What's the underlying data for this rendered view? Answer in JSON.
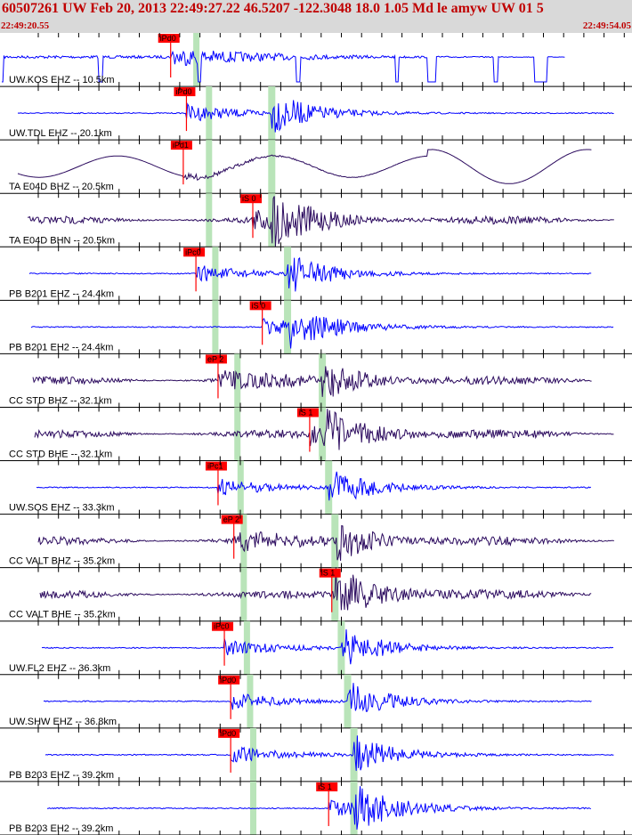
{
  "header": {
    "title": "60507261 UW Feb 20, 2013 22:49:27.22   46.5207 -122.3048 18.0 1.05 Md le amyw UW 01   5",
    "time_start": "22:49:20.55",
    "time_end": "22:49:54.05"
  },
  "colors": {
    "header_bg": "#d9d9d9",
    "header_text": "#c00000",
    "short_period": "#0000ff",
    "broadband": "#2b0a5e",
    "pick_box": "#ff0000",
    "green_band": "#b9e4b9",
    "residual": "#ff0000"
  },
  "traces": [
    {
      "label": "UW.KOS EHZ -- 10.5km",
      "pick": "iPd0",
      "type": "dropout",
      "color": "#0000ff",
      "green": 0.31,
      "pick_x": 0.27
    },
    {
      "label": "UW.TDL EHZ -- 20.1km",
      "pick": "iPd0",
      "type": "sp",
      "color": "#0000ff",
      "green": 0.33,
      "s_green": 0.43,
      "pick_x": 0.295
    },
    {
      "label": "TA E04D BHZ -- 20.5km",
      "pick": "iPd1",
      "type": "bb_lowfreq",
      "color": "#2b0a5e",
      "green": 0.33,
      "s_green": 0.43,
      "pick_x": 0.29
    },
    {
      "label": "TA E04D BHN -- 20.5km",
      "pick": "iS 0",
      "type": "bb",
      "color": "#2b0a5e",
      "green": 0.33,
      "s_green": 0.43,
      "pick_x": 0.4
    },
    {
      "label": "PB B201 EHZ -- 24.4km",
      "pick": "iPc0",
      "type": "sp",
      "color": "#0000ff",
      "green": 0.34,
      "s_green": 0.455,
      "pick_x": 0.31
    },
    {
      "label": "PB B201 EH2 -- 24.4km",
      "pick": "iS 0",
      "type": "sp",
      "color": "#0000ff",
      "green": 0.34,
      "s_green": 0.455,
      "pick_x": 0.415
    },
    {
      "label": "CC STD BHZ -- 32.1km",
      "pick": "eP 2",
      "type": "bb",
      "color": "#2b0a5e",
      "green": 0.375,
      "s_green": 0.51,
      "pick_x": 0.345
    },
    {
      "label": "CC STD BHE -- 32.1km",
      "pick": "iS 1",
      "type": "bb",
      "color": "#2b0a5e",
      "green": 0.375,
      "s_green": 0.51,
      "pick_x": 0.49
    },
    {
      "label": "UW.SOS EHZ -- 33.3km",
      "pick": "iPc1",
      "type": "sp",
      "color": "#0000ff",
      "green": 0.38,
      "s_green": 0.52,
      "pick_x": 0.345
    },
    {
      "label": "CC VALT BHZ -- 35.2km",
      "pick": "eP 2",
      "type": "bb",
      "color": "#2b0a5e",
      "green": 0.385,
      "s_green": 0.53,
      "pick_x": 0.37
    },
    {
      "label": "CC VALT BHE -- 35.2km",
      "pick": "iS 1",
      "type": "bb",
      "color": "#2b0a5e",
      "green": 0.385,
      "s_green": 0.53,
      "pick_x": 0.525
    },
    {
      "label": "UW.FL2 EHZ -- 36.3km",
      "pick": "iPc0",
      "type": "sp",
      "color": "#0000ff",
      "green": 0.39,
      "s_green": 0.54,
      "pick_x": 0.355
    },
    {
      "label": "UW.SHW EHZ -- 36.8km",
      "pick": "iPd0",
      "type": "sp",
      "color": "#0000ff",
      "green": 0.395,
      "s_green": 0.55,
      "pick_x": 0.365
    },
    {
      "label": "PB B203 EHZ -- 39.2km",
      "pick": "iPd0",
      "type": "sp",
      "color": "#0000ff",
      "green": 0.4,
      "s_green": 0.56,
      "pick_x": 0.365
    },
    {
      "label": "PB B203 EH2 -- 39.2km",
      "pick": "iS 1",
      "type": "sp",
      "color": "#0000ff",
      "green": 0.4,
      "s_green": 0.56,
      "pick_x": 0.52
    }
  ]
}
